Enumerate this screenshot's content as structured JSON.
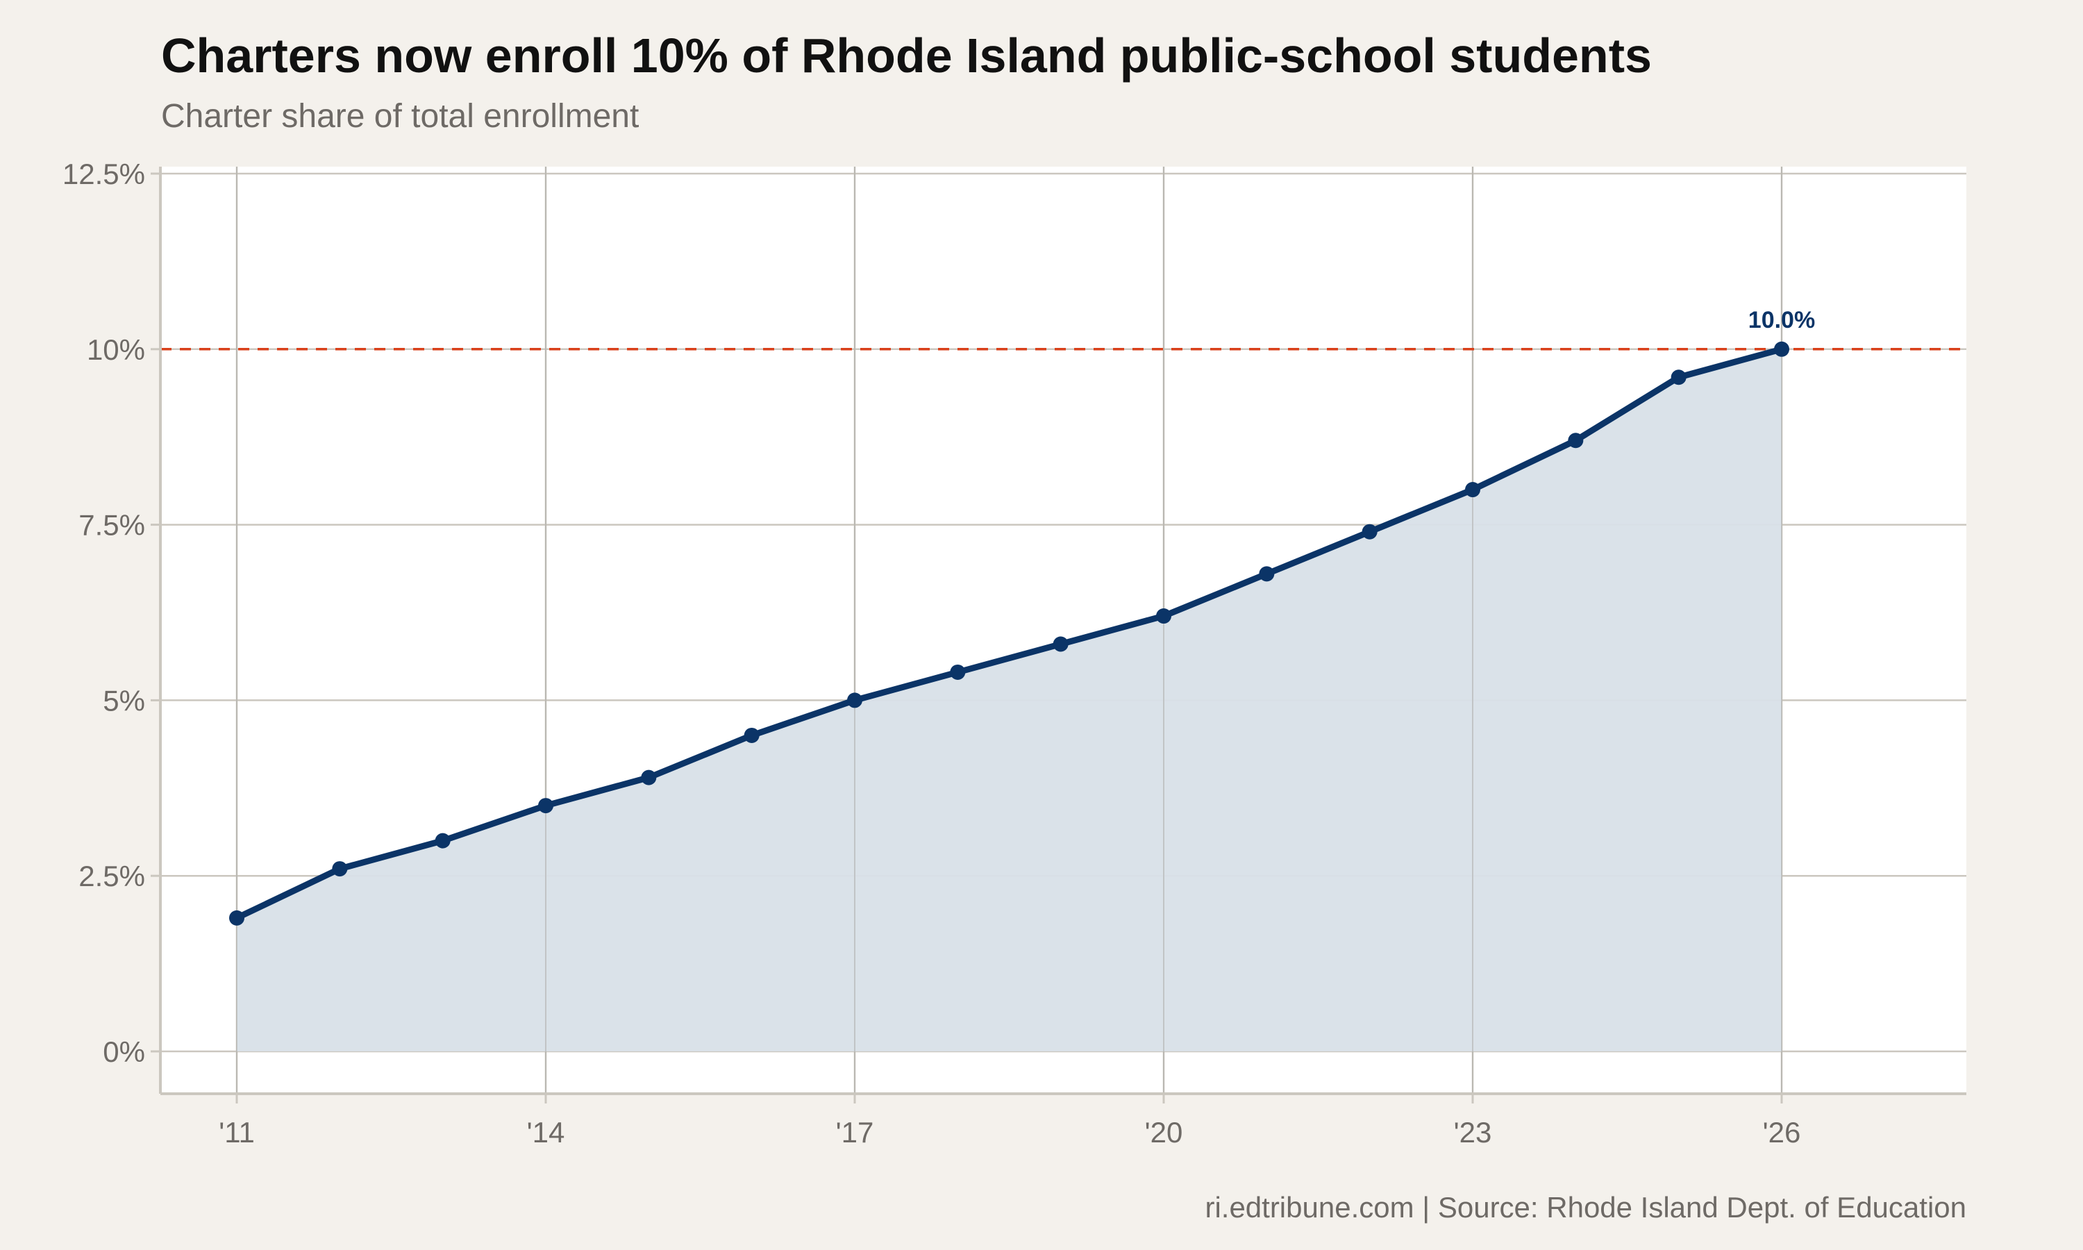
{
  "title": "Charters now enroll 10% of Rhode Island public-school students",
  "subtitle": "Charter share of total enrollment",
  "caption": "ri.edtribune.com | Source: Rhode Island Dept. of Education",
  "chart_data": {
    "type": "area",
    "title": "Charters now enroll 10% of Rhode Island public-school students",
    "subtitle": "Charter share of total enrollment",
    "xlabel": "",
    "ylabel": "",
    "x": [
      2011,
      2012,
      2013,
      2014,
      2015,
      2016,
      2017,
      2018,
      2019,
      2020,
      2021,
      2022,
      2023,
      2024,
      2025,
      2026
    ],
    "values": [
      1.9,
      2.6,
      3.0,
      3.5,
      3.9,
      4.5,
      5.0,
      5.4,
      5.8,
      6.2,
      6.8,
      7.4,
      8.0,
      8.7,
      9.6,
      10.0
    ],
    "xlim": [
      2010,
      2028
    ],
    "ylim": [
      -0.6,
      12.6
    ],
    "x_ticks": [
      2011,
      2014,
      2017,
      2020,
      2023,
      2026
    ],
    "x_tick_labels": [
      "'11",
      "'14",
      "'17",
      "'20",
      "'23",
      "'26"
    ],
    "y_ticks": [
      0,
      2.5,
      5,
      7.5,
      10,
      12.5
    ],
    "y_tick_labels": [
      "0%",
      "2.5%",
      "5%",
      "7.5%",
      "10%",
      "12.5%"
    ],
    "reference_line": {
      "y": 10,
      "style": "dashed",
      "color": "#d9401a"
    },
    "end_label": "10.0%",
    "grid": true,
    "legend": "none",
    "colors": {
      "line": "#0b3467",
      "fill": "#d8e0e8",
      "background": "#f4f1ec",
      "panel": "#ffffff",
      "grid": "#cbc7bf"
    }
  }
}
